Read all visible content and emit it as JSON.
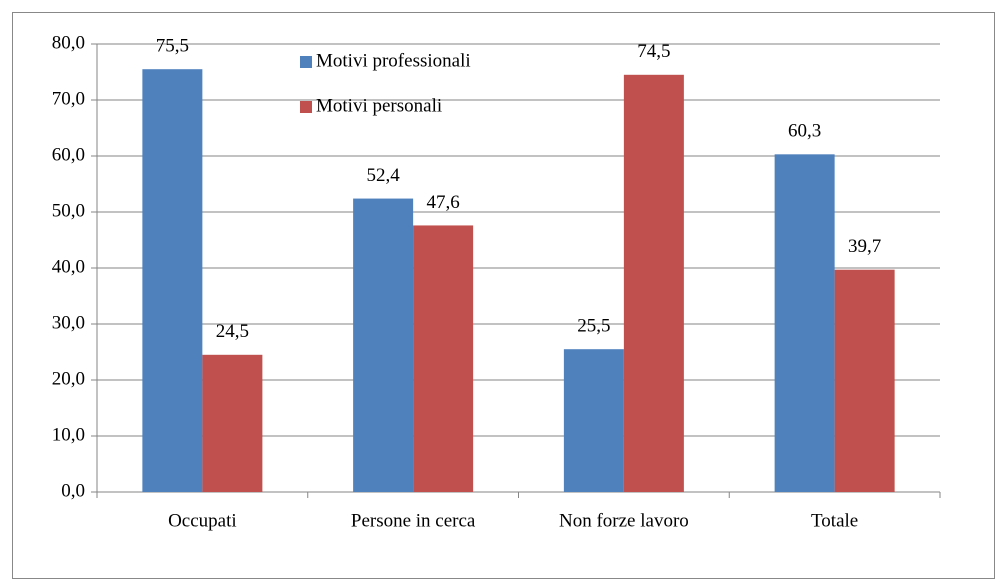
{
  "chart_data": {
    "type": "bar",
    "categories": [
      "Occupati",
      "Persone in cerca",
      "Non forze lavoro",
      "Totale"
    ],
    "series": [
      {
        "name": "Motivi professionali",
        "color": "#4f81bd",
        "values": [
          75.5,
          52.4,
          25.5,
          60.3
        ],
        "value_labels": [
          "75,5",
          "52,4",
          "25,5",
          "60,3"
        ]
      },
      {
        "name": "Motivi personali",
        "color": "#c0504d",
        "values": [
          24.5,
          47.6,
          74.5,
          39.7
        ],
        "value_labels": [
          "24,5",
          "47,6",
          "74,5",
          "39,7"
        ]
      }
    ],
    "ylim": [
      0,
      80
    ],
    "yticks": [
      {
        "value": 0,
        "label": "0,0"
      },
      {
        "value": 10,
        "label": "10,0"
      },
      {
        "value": 20,
        "label": "20,0"
      },
      {
        "value": 30,
        "label": "30,0"
      },
      {
        "value": 40,
        "label": "40,0"
      },
      {
        "value": 50,
        "label": "50,0"
      },
      {
        "value": 60,
        "label": "60,0"
      },
      {
        "value": 70,
        "label": "70,0"
      },
      {
        "value": 80,
        "label": "80,0"
      }
    ],
    "grid": true,
    "legend": "top"
  }
}
